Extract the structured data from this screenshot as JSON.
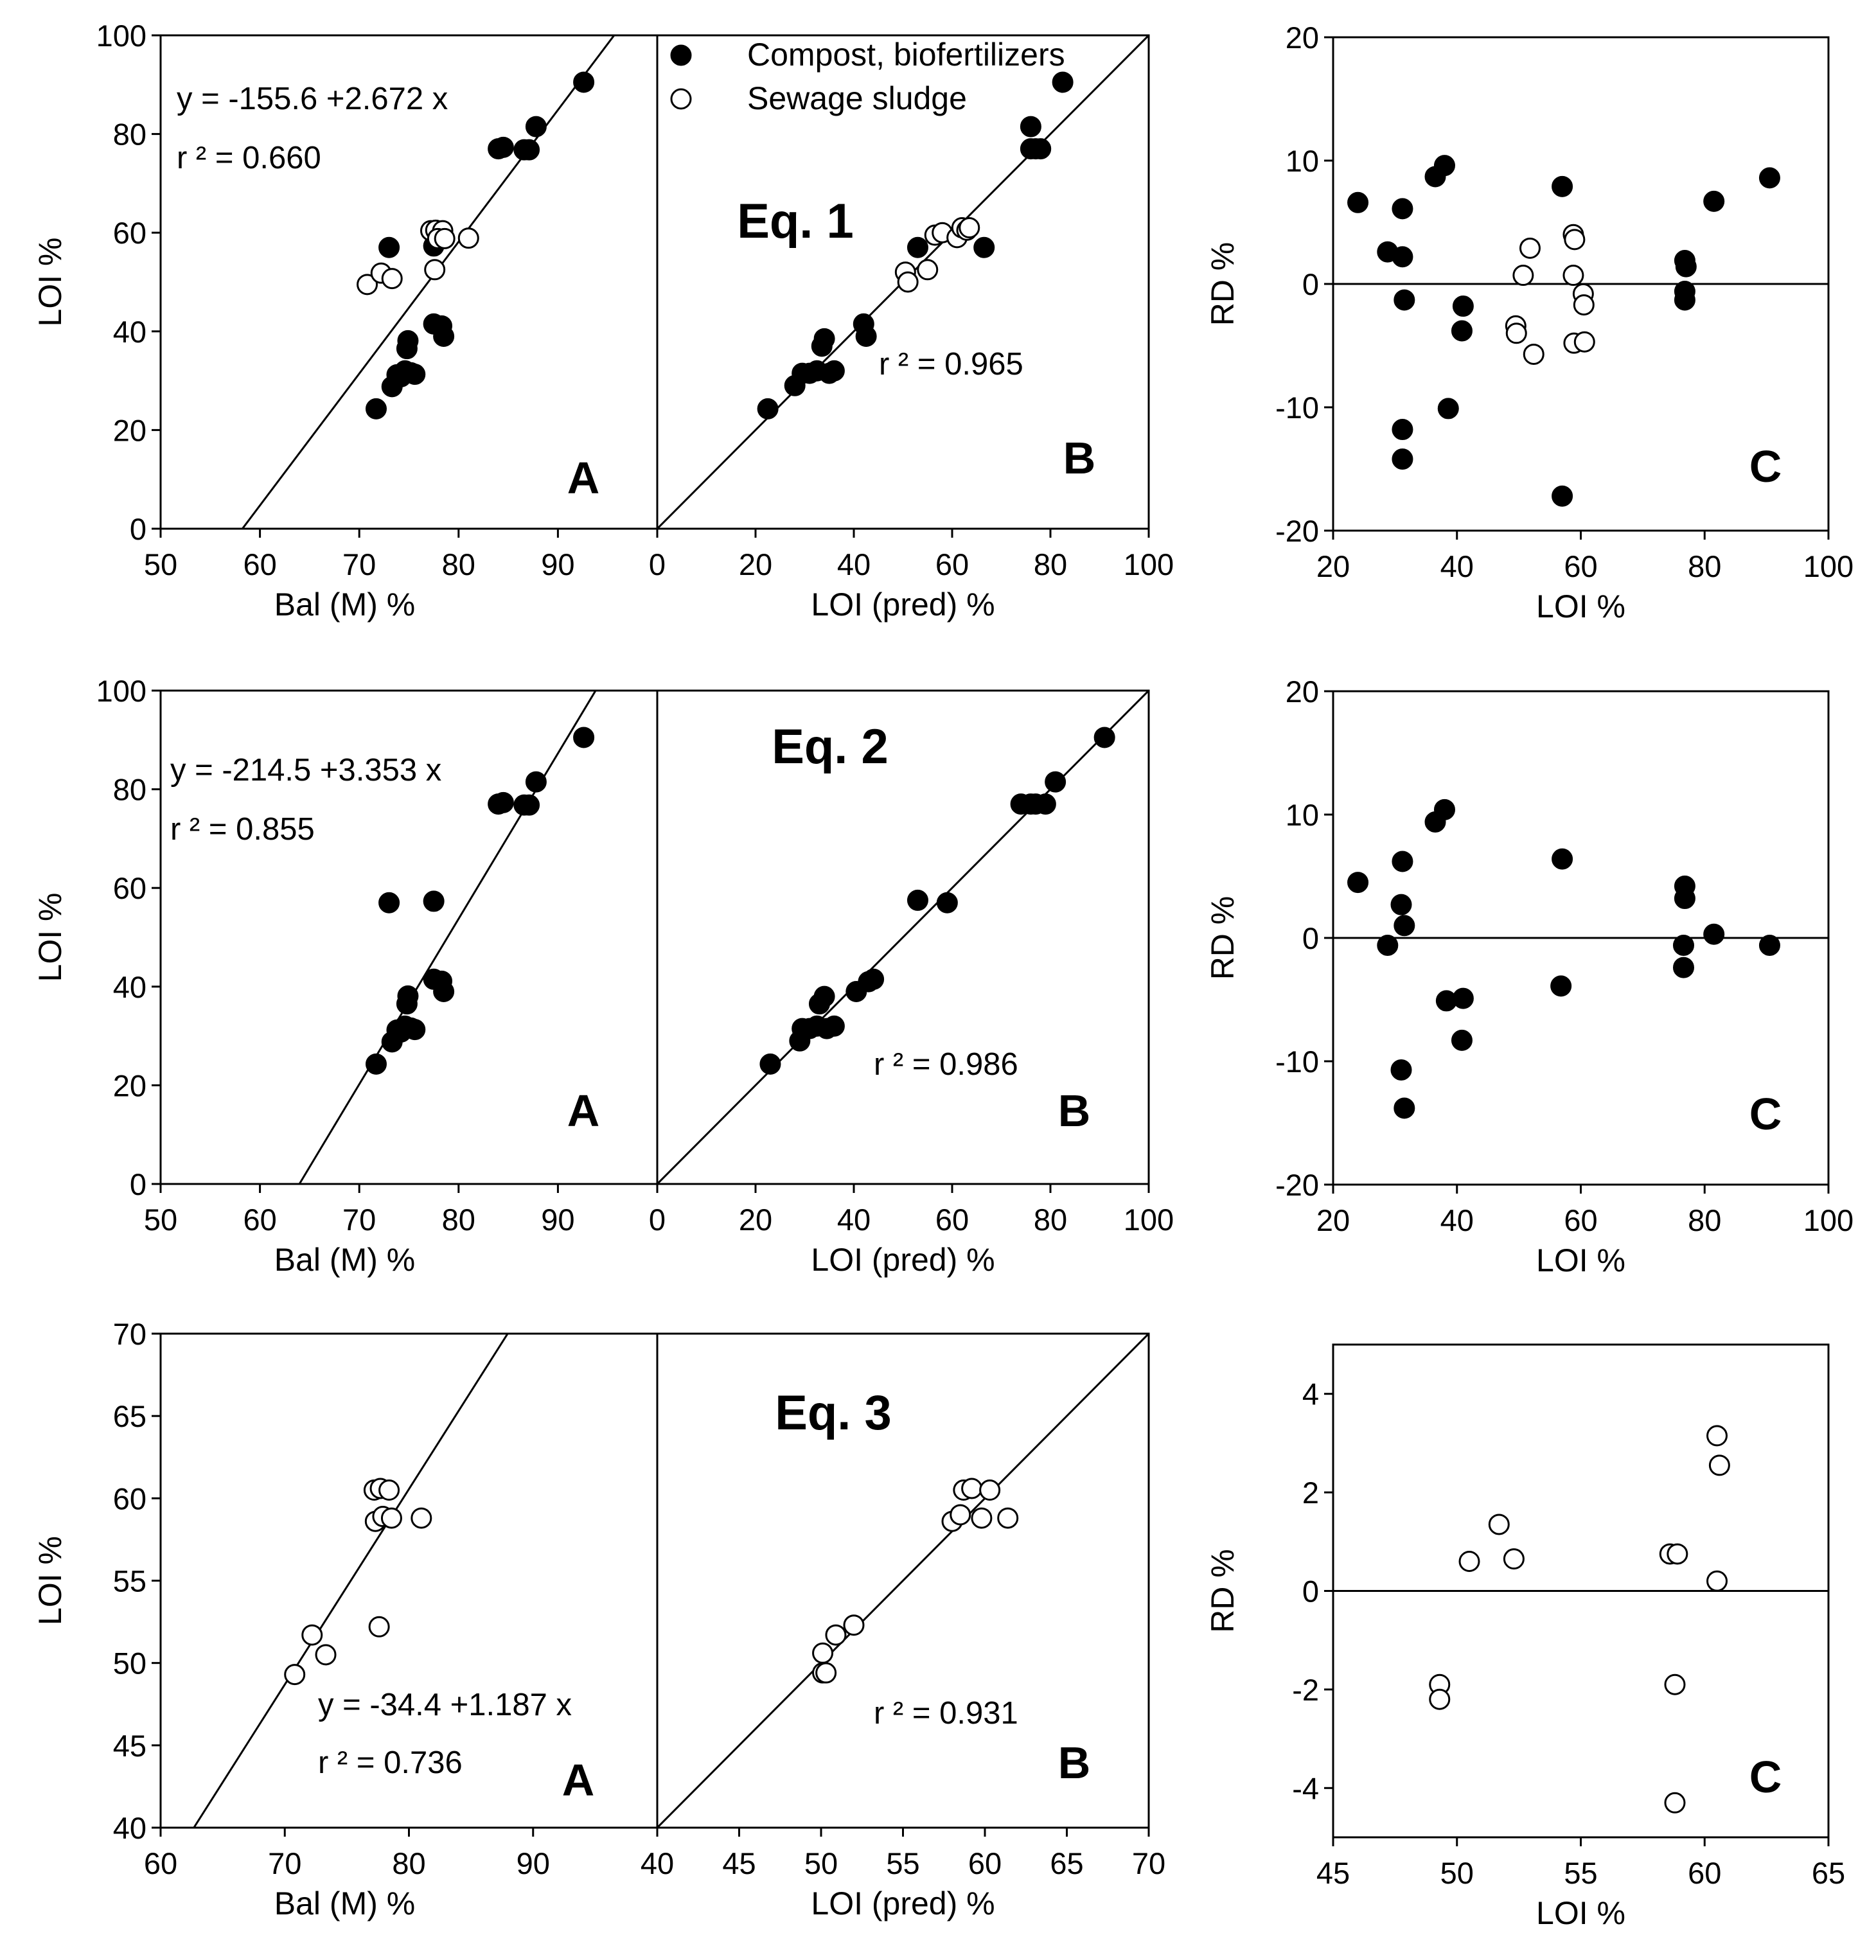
{
  "legend": {
    "filled": "Compost, biofertilizers",
    "open": "Sewage sludge"
  },
  "chart_data": [
    {
      "id": "eq1-A",
      "type": "scatter",
      "panel_letter": "A",
      "xlabel": "Bal (M) %",
      "ylabel": "LOI %",
      "xlim": [
        50,
        100
      ],
      "ylim": [
        0,
        100
      ],
      "xticks": [
        50,
        60,
        70,
        80,
        90
      ],
      "yticks": [
        0,
        20,
        40,
        60,
        80,
        100
      ],
      "regression": {
        "intercept": -155.6,
        "slope": 2.672
      },
      "equation_text": "y = -155.6 +2.672 x",
      "r2_text": "r ² = 0.660",
      "series": [
        {
          "name": "Compost, biofertilizers",
          "marker": "filled",
          "points": [
            [
              71.7,
              24.3
            ],
            [
              73.3,
              28.8
            ],
            [
              73.8,
              31.2
            ],
            [
              74.2,
              30.8
            ],
            [
              74.6,
              32.0
            ],
            [
              75.2,
              31.6
            ],
            [
              75.6,
              31.3
            ],
            [
              74.8,
              36.5
            ],
            [
              74.9,
              38.1
            ],
            [
              73.0,
              57.0
            ],
            [
              77.5,
              57.3
            ],
            [
              77.5,
              41.5
            ],
            [
              78.3,
              41.1
            ],
            [
              78.5,
              39.0
            ],
            [
              84.0,
              77.0
            ],
            [
              84.5,
              77.3
            ],
            [
              86.6,
              76.8
            ],
            [
              87.1,
              76.8
            ],
            [
              87.8,
              81.5
            ],
            [
              92.6,
              90.5
            ]
          ]
        },
        {
          "name": "Sewage sludge",
          "marker": "open",
          "points": [
            [
              70.8,
              49.5
            ],
            [
              72.2,
              51.8
            ],
            [
              73.3,
              50.7
            ],
            [
              77.6,
              52.5
            ],
            [
              77.2,
              60.4
            ],
            [
              77.7,
              60.5
            ],
            [
              78.4,
              60.4
            ],
            [
              77.9,
              58.8
            ],
            [
              78.6,
              58.8
            ],
            [
              81.0,
              58.9
            ]
          ]
        }
      ]
    },
    {
      "id": "eq1-B",
      "type": "scatter",
      "panel_letter": "B",
      "title": "Eq. 1",
      "xlabel": "LOI (pred) %",
      "ylabel": "",
      "xlim": [
        0,
        100
      ],
      "ylim": [
        0,
        100
      ],
      "xticks": [
        0,
        20,
        40,
        60,
        80,
        100
      ],
      "yticks": [],
      "regression": {
        "intercept": 0,
        "slope": 1
      },
      "equation_text": "",
      "r2_text": "r ² = 0.965",
      "series": [
        {
          "name": "Compost, biofertilizers",
          "marker": "filled",
          "points": [
            [
              22.5,
              24.3
            ],
            [
              28.0,
              29.0
            ],
            [
              29.5,
              31.5
            ],
            [
              31.0,
              31.5
            ],
            [
              32.5,
              32.0
            ],
            [
              33.5,
              37.0
            ],
            [
              34.0,
              38.5
            ],
            [
              35.0,
              31.5
            ],
            [
              36.0,
              32.0
            ],
            [
              42.0,
              41.5
            ],
            [
              42.5,
              39.0
            ],
            [
              53.0,
              57.0
            ],
            [
              66.5,
              57.0
            ],
            [
              76.0,
              81.5
            ],
            [
              76.0,
              77.0
            ],
            [
              77.0,
              77.0
            ],
            [
              78.0,
              77.0
            ],
            [
              82.5,
              90.5
            ]
          ]
        },
        {
          "name": "Sewage sludge",
          "marker": "open",
          "points": [
            [
              50.5,
              52.0
            ],
            [
              51.0,
              50.0
            ],
            [
              55.0,
              52.5
            ],
            [
              56.5,
              59.5
            ],
            [
              58.0,
              60.0
            ],
            [
              61.0,
              59.0
            ],
            [
              62.0,
              61.0
            ],
            [
              63.0,
              60.5
            ],
            [
              63.5,
              61.0
            ]
          ]
        }
      ]
    },
    {
      "id": "eq1-C",
      "type": "scatter",
      "panel_letter": "C",
      "xlabel": "LOI %",
      "ylabel": "RD %",
      "xlim": [
        20,
        100
      ],
      "ylim": [
        -20,
        20
      ],
      "xticks": [
        20,
        40,
        60,
        80,
        100
      ],
      "yticks": [
        -20,
        -10,
        0,
        10,
        20
      ],
      "zero_line": true,
      "series": [
        {
          "name": "Compost, biofertilizers",
          "marker": "filled",
          "points": [
            [
              24.0,
              6.6
            ],
            [
              28.8,
              2.6
            ],
            [
              31.2,
              2.2
            ],
            [
              31.2,
              6.1
            ],
            [
              31.5,
              -1.3
            ],
            [
              31.2,
              -11.8
            ],
            [
              31.2,
              -14.2
            ],
            [
              36.5,
              8.7
            ],
            [
              38.0,
              9.6
            ],
            [
              38.6,
              -10.1
            ],
            [
              41.0,
              -1.8
            ],
            [
              40.8,
              -3.8
            ],
            [
              57.0,
              7.9
            ],
            [
              57.0,
              -17.2
            ],
            [
              76.8,
              1.9
            ],
            [
              77.0,
              1.4
            ],
            [
              76.8,
              -0.6
            ],
            [
              76.8,
              -1.3
            ],
            [
              81.5,
              6.7
            ],
            [
              90.5,
              8.6
            ]
          ]
        },
        {
          "name": "Sewage sludge",
          "marker": "open",
          "points": [
            [
              49.5,
              -3.4
            ],
            [
              49.6,
              -4.0
            ],
            [
              50.7,
              0.7
            ],
            [
              51.8,
              2.9
            ],
            [
              52.4,
              -5.7
            ],
            [
              58.8,
              4.0
            ],
            [
              59.0,
              3.6
            ],
            [
              58.8,
              0.7
            ],
            [
              58.9,
              -4.8
            ],
            [
              60.4,
              -0.8
            ],
            [
              60.5,
              -1.7
            ],
            [
              60.6,
              -4.7
            ]
          ]
        }
      ]
    },
    {
      "id": "eq2-A",
      "type": "scatter",
      "panel_letter": "A",
      "xlabel": "Bal (M) %",
      "ylabel": "LOI %",
      "xlim": [
        50,
        100
      ],
      "ylim": [
        0,
        100
      ],
      "xticks": [
        50,
        60,
        70,
        80,
        90
      ],
      "yticks": [
        0,
        20,
        40,
        60,
        80,
        100
      ],
      "regression": {
        "intercept": -214.5,
        "slope": 3.353
      },
      "equation_text": "y = -214.5 +3.353 x",
      "r2_text": "r ² = 0.855",
      "series": [
        {
          "name": "Compost, biofertilizers",
          "marker": "filled",
          "points": [
            [
              71.7,
              24.3
            ],
            [
              73.3,
              28.8
            ],
            [
              73.8,
              31.2
            ],
            [
              74.2,
              30.8
            ],
            [
              74.6,
              32.0
            ],
            [
              75.2,
              31.6
            ],
            [
              75.6,
              31.3
            ],
            [
              74.8,
              36.5
            ],
            [
              74.9,
              38.1
            ],
            [
              73.0,
              57.0
            ],
            [
              77.5,
              57.3
            ],
            [
              77.5,
              41.5
            ],
            [
              78.3,
              41.1
            ],
            [
              78.5,
              39.0
            ],
            [
              84.0,
              77.0
            ],
            [
              84.5,
              77.3
            ],
            [
              86.6,
              76.8
            ],
            [
              87.1,
              76.8
            ],
            [
              87.8,
              81.5
            ],
            [
              92.6,
              90.5
            ]
          ]
        }
      ]
    },
    {
      "id": "eq2-B",
      "type": "scatter",
      "panel_letter": "B",
      "title": "Eq. 2",
      "xlabel": "LOI (pred) %",
      "ylabel": "",
      "xlim": [
        0,
        100
      ],
      "ylim": [
        0,
        100
      ],
      "xticks": [
        0,
        20,
        40,
        60,
        80,
        100
      ],
      "yticks": [],
      "regression": {
        "intercept": 0,
        "slope": 1
      },
      "equation_text": "",
      "r2_text": "r ² = 0.986",
      "series": [
        {
          "name": "Compost, biofertilizers",
          "marker": "filled",
          "points": [
            [
              23.0,
              24.3
            ],
            [
              29.0,
              29.0
            ],
            [
              29.5,
              31.5
            ],
            [
              31.0,
              31.5
            ],
            [
              32.5,
              32.0
            ],
            [
              33.0,
              36.5
            ],
            [
              34.0,
              38.0
            ],
            [
              34.5,
              31.5
            ],
            [
              36.0,
              32.0
            ],
            [
              40.5,
              39.0
            ],
            [
              43.0,
              41.0
            ],
            [
              44.0,
              41.5
            ],
            [
              53.0,
              57.5
            ],
            [
              59.0,
              57.0
            ],
            [
              74.0,
              77.0
            ],
            [
              76.0,
              77.0
            ],
            [
              77.0,
              77.0
            ],
            [
              79.0,
              77.0
            ],
            [
              81.0,
              81.5
            ],
            [
              91.0,
              90.5
            ]
          ]
        }
      ]
    },
    {
      "id": "eq2-C",
      "type": "scatter",
      "panel_letter": "C",
      "xlabel": "LOI %",
      "ylabel": "RD %",
      "xlim": [
        20,
        100
      ],
      "ylim": [
        -20,
        20
      ],
      "xticks": [
        20,
        40,
        60,
        80,
        100
      ],
      "yticks": [
        -20,
        -10,
        0,
        10,
        20
      ],
      "zero_line": true,
      "series": [
        {
          "name": "Compost, biofertilizers",
          "marker": "filled",
          "points": [
            [
              24.0,
              4.5
            ],
            [
              28.8,
              -0.6
            ],
            [
              31.2,
              6.2
            ],
            [
              31.0,
              2.7
            ],
            [
              31.5,
              1.0
            ],
            [
              31.0,
              -10.7
            ],
            [
              31.5,
              -13.8
            ],
            [
              36.5,
              9.4
            ],
            [
              38.0,
              10.4
            ],
            [
              38.3,
              -5.1
            ],
            [
              41.0,
              -4.9
            ],
            [
              40.8,
              -8.3
            ],
            [
              57.0,
              6.4
            ],
            [
              56.8,
              -3.9
            ],
            [
              76.8,
              4.2
            ],
            [
              76.8,
              3.2
            ],
            [
              76.6,
              -0.6
            ],
            [
              76.6,
              -2.4
            ],
            [
              81.5,
              0.3
            ],
            [
              90.5,
              -0.6
            ]
          ]
        }
      ]
    },
    {
      "id": "eq3-A",
      "type": "scatter",
      "panel_letter": "A",
      "xlabel": "Bal (M) %",
      "ylabel": "LOI %",
      "xlim": [
        60,
        100
      ],
      "ylim": [
        40,
        70
      ],
      "xticks": [
        60,
        70,
        80,
        90
      ],
      "yticks": [
        40,
        45,
        50,
        55,
        60,
        65,
        70
      ],
      "regression": {
        "intercept": -34.4,
        "slope": 1.187
      },
      "equation_text": "y = -34.4 +1.187 x",
      "r2_text": "r ² = 0.736",
      "series": [
        {
          "name": "Sewage sludge",
          "marker": "open",
          "points": [
            [
              70.8,
              49.3
            ],
            [
              72.2,
              51.7
            ],
            [
              73.3,
              50.5
            ],
            [
              77.6,
              52.2
            ],
            [
              77.2,
              60.5
            ],
            [
              77.7,
              60.6
            ],
            [
              78.4,
              60.5
            ],
            [
              77.3,
              58.6
            ],
            [
              77.9,
              58.9
            ],
            [
              78.6,
              58.8
            ],
            [
              81.0,
              58.8
            ]
          ]
        }
      ]
    },
    {
      "id": "eq3-B",
      "type": "scatter",
      "panel_letter": "B",
      "title": "Eq. 3",
      "xlabel": "LOI (pred) %",
      "ylabel": "",
      "xlim": [
        40,
        70
      ],
      "ylim": [
        40,
        70
      ],
      "xticks": [
        40,
        45,
        50,
        55,
        60,
        65,
        70
      ],
      "yticks": [],
      "regression": {
        "intercept": 0,
        "slope": 1
      },
      "equation_text": "",
      "r2_text": "r ² = 0.931",
      "series": [
        {
          "name": "Sewage sludge",
          "marker": "open",
          "points": [
            [
              50.1,
              49.4
            ],
            [
              50.3,
              49.4
            ],
            [
              50.1,
              50.6
            ],
            [
              50.9,
              51.7
            ],
            [
              52.0,
              52.3
            ],
            [
              58.0,
              58.6
            ],
            [
              58.5,
              59.0
            ],
            [
              58.7,
              60.5
            ],
            [
              59.2,
              60.6
            ],
            [
              59.8,
              58.8
            ],
            [
              60.3,
              60.5
            ],
            [
              61.4,
              58.8
            ]
          ]
        }
      ]
    },
    {
      "id": "eq3-C",
      "type": "scatter",
      "panel_letter": "C",
      "xlabel": "LOI %",
      "ylabel": "RD %",
      "xlim": [
        45,
        65
      ],
      "ylim": [
        -5,
        5
      ],
      "xticks": [
        45,
        50,
        55,
        60,
        65
      ],
      "yticks": [
        -4,
        -2,
        0,
        2,
        4
      ],
      "zero_line": true,
      "series": [
        {
          "name": "Sewage sludge",
          "marker": "open",
          "points": [
            [
              49.3,
              -1.9
            ],
            [
              49.3,
              -2.2
            ],
            [
              50.5,
              0.6
            ],
            [
              51.7,
              1.35
            ],
            [
              52.3,
              0.65
            ],
            [
              58.6,
              0.75
            ],
            [
              58.9,
              0.75
            ],
            [
              58.8,
              -1.9
            ],
            [
              58.8,
              -4.3
            ],
            [
              60.5,
              3.15
            ],
            [
              60.6,
              2.55
            ],
            [
              60.5,
              0.2
            ]
          ]
        }
      ]
    }
  ]
}
